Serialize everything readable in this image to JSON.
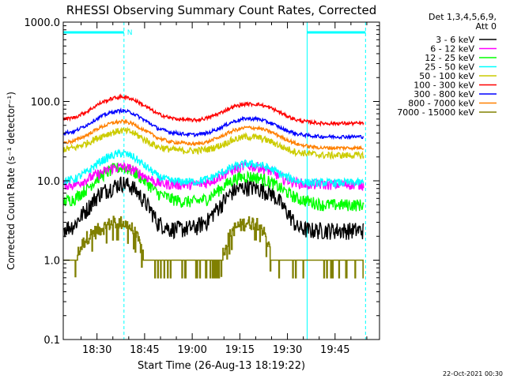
{
  "chart_data": {
    "type": "line",
    "title": "RHESSI Observing Summary Count Rates, Corrected",
    "ylabel": "Corrected Count Rate (s⁻¹ detector⁻¹)",
    "xlabel": "Start Time (26-Aug-13 18:19:22)",
    "y_scale": "log",
    "ylim": [
      0.1,
      1000
    ],
    "y_ticks": [
      "1000.0",
      "100.0",
      "10.0",
      "1.0",
      "0.1"
    ],
    "y_tick_values": [
      1000,
      100,
      10,
      1,
      0.1
    ],
    "x_range_minutes": [
      "18:20",
      "19:59"
    ],
    "x_ticks": [
      "18:30",
      "18:45",
      "19:00",
      "19:15",
      "19:30",
      "19:45"
    ],
    "x_tick_minutes": [
      630,
      645,
      660,
      675,
      690,
      705
    ],
    "x_start_minute": 619.37,
    "x_end_minute": 719,
    "legend_header": [
      "Det 1,3,4,5,6,9,",
      "Att 0"
    ],
    "legend_placement": "right",
    "footer_date": "22-Oct-2021 00:30",
    "night_intervals": [
      {
        "start": 619.37,
        "end": 638.5,
        "label": "N"
      },
      {
        "start": 696.2,
        "end": 714.6,
        "label": ""
      }
    ],
    "x": [
      619.5,
      623,
      627,
      631,
      635,
      638,
      641,
      645,
      649,
      653,
      657,
      661,
      665,
      669,
      673,
      677,
      681,
      685,
      689,
      693,
      697,
      701,
      705,
      709,
      714
    ],
    "series": [
      {
        "name": "3 - 6 keV",
        "color": "#000000",
        "noise": 0.25,
        "values": [
          2.5,
          2.8,
          4.5,
          7.0,
          8.5,
          9.5,
          8.5,
          5.5,
          3.0,
          2.5,
          2.5,
          2.6,
          3.2,
          5.0,
          7.5,
          8.5,
          8.0,
          7.0,
          4.5,
          2.6,
          2.4,
          2.4,
          2.4,
          2.4,
          2.4
        ]
      },
      {
        "name": "6 - 12 keV",
        "color": "#ff00ff",
        "noise": 0.15,
        "values": [
          9.0,
          9.0,
          10.5,
          12.5,
          14.5,
          15.0,
          14.0,
          11.5,
          9.5,
          9.0,
          9.0,
          9.0,
          9.5,
          11.5,
          14.0,
          15.5,
          15.0,
          13.0,
          10.5,
          9.5,
          9.0,
          9.0,
          9.0,
          9.0,
          9.0
        ]
      },
      {
        "name": "12 - 25 keV",
        "color": "#00ff00",
        "noise": 0.18,
        "values": [
          5.5,
          6.0,
          8.0,
          11.5,
          14.0,
          15.0,
          13.5,
          10.0,
          7.0,
          6.0,
          5.5,
          5.5,
          6.0,
          8.0,
          10.5,
          11.5,
          11.0,
          9.5,
          7.5,
          6.0,
          5.5,
          5.0,
          5.0,
          5.0,
          5.0
        ]
      },
      {
        "name": "25 - 50 keV",
        "color": "#00ffff",
        "noise": 0.12,
        "values": [
          10.0,
          10.5,
          13.0,
          17.5,
          21.0,
          22.5,
          20.5,
          15.5,
          11.5,
          10.0,
          9.8,
          9.8,
          10.5,
          12.5,
          15.0,
          16.5,
          16.0,
          14.0,
          11.5,
          10.0,
          9.5,
          9.5,
          9.5,
          9.5,
          9.5
        ]
      },
      {
        "name": "50 - 100 keV",
        "color": "#cccc00",
        "noise": 0.1,
        "values": [
          25,
          26,
          30,
          36,
          41,
          43,
          41,
          33,
          27,
          25,
          24,
          24,
          25,
          28,
          33,
          36,
          35,
          31,
          26,
          23,
          22,
          21,
          21,
          21,
          21
        ]
      },
      {
        "name": "100 - 300 keV",
        "color": "#ff0000",
        "noise": 0.05,
        "values": [
          60,
          63,
          75,
          95,
          110,
          115,
          108,
          88,
          70,
          62,
          59,
          58,
          62,
          72,
          86,
          93,
          92,
          82,
          68,
          58,
          55,
          53,
          53,
          53,
          53
        ]
      },
      {
        "name": "300 - 800 keV",
        "color": "#0000ff",
        "noise": 0.05,
        "values": [
          40,
          42,
          51,
          64,
          74,
          77,
          72,
          58,
          46,
          41,
          39,
          38,
          40,
          47,
          56,
          61,
          60,
          53,
          44,
          39,
          37,
          36,
          36,
          36,
          36
        ]
      },
      {
        "name": "800 - 7000 keV",
        "color": "#ff8000",
        "noise": 0.05,
        "values": [
          30,
          32,
          38,
          47,
          54,
          56,
          53,
          43,
          35,
          31,
          30,
          29,
          31,
          36,
          43,
          47,
          46,
          41,
          34,
          29,
          27,
          26,
          26,
          26,
          26
        ]
      },
      {
        "name": "7000 - 15000 keV",
        "color": "#808000",
        "noise": 0.2,
        "step": true,
        "values": [
          1.0,
          1.0,
          2.0,
          2.5,
          3.0,
          3.0,
          2.5,
          1.0,
          1.0,
          1.0,
          1.0,
          1.0,
          1.0,
          1.0,
          2.5,
          3.0,
          3.0,
          1.0,
          1.0,
          1.0,
          1.0,
          1.0,
          1.0,
          1.0,
          1.0
        ]
      }
    ]
  }
}
